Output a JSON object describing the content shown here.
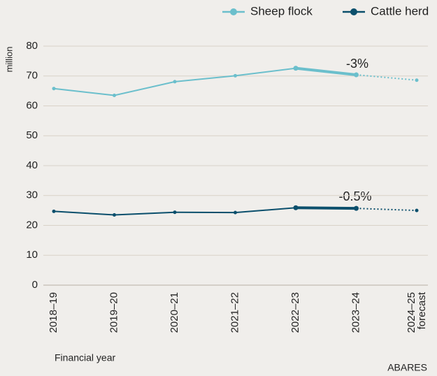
{
  "chart_data": {
    "type": "line",
    "y_axis_label": "million",
    "x_axis_label": "Financial year",
    "source": "ABARES",
    "annotations": [
      "-3%",
      "-0.5%"
    ],
    "categories": [
      "2018–19",
      "2019–20",
      "2020–21",
      "2021–22",
      "2022–23",
      "2023–24",
      "2024–25 forecast"
    ],
    "series": [
      {
        "name": "Sheep flock",
        "color": "#6bbfcc",
        "values": [
          65.8,
          63.5,
          68.1,
          70.1,
          72.6,
          70.4,
          68.6
        ]
      },
      {
        "name": "Cattle herd",
        "color": "#0b4f6c",
        "values": [
          24.7,
          23.5,
          24.4,
          24.3,
          25.9,
          25.7,
          25.0
        ]
      }
    ],
    "ylim": [
      0,
      80
    ],
    "yticks": [
      0,
      10,
      20,
      30,
      40,
      50,
      60,
      70,
      80
    ],
    "grid": true,
    "legend": "top-right"
  }
}
